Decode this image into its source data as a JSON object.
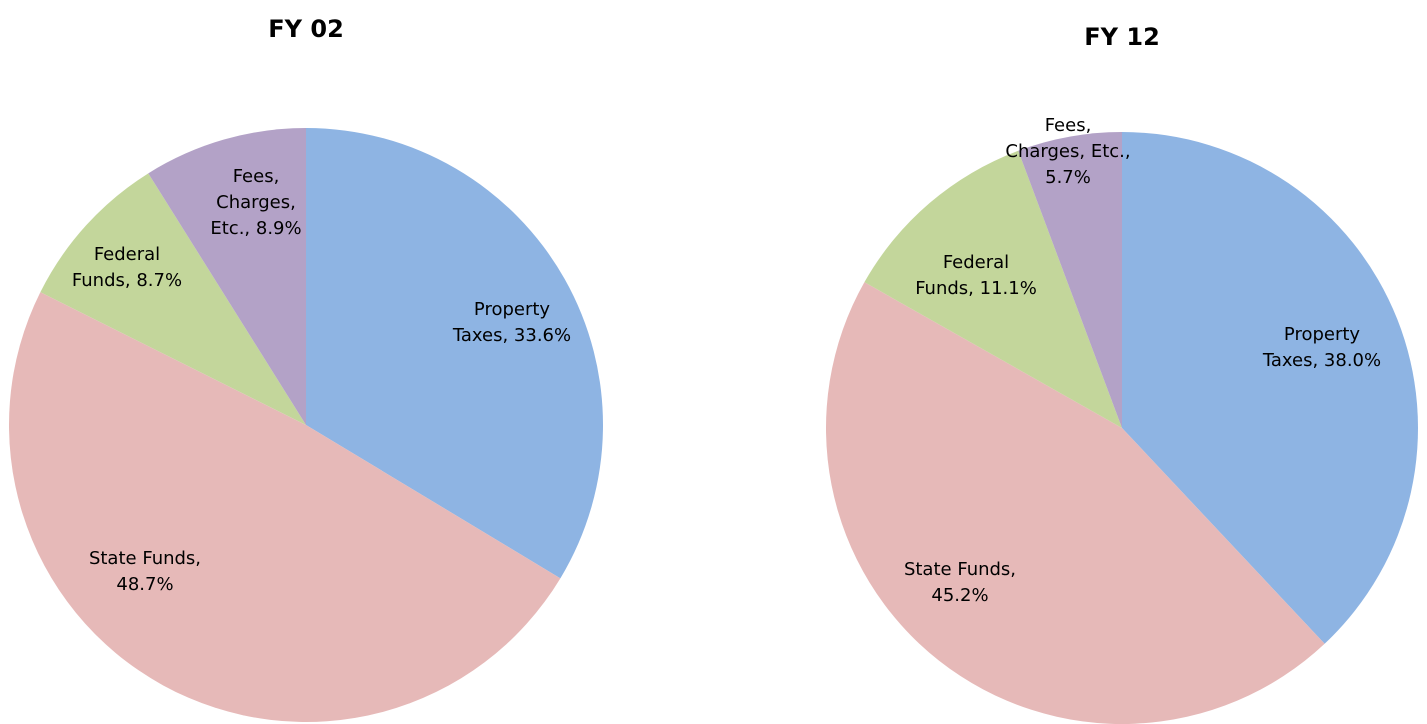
{
  "chart_data": [
    {
      "type": "pie",
      "title": "FY 02",
      "categories": [
        "Property Taxes",
        "State Funds",
        "Federal Funds",
        "Fees, Charges, Etc."
      ],
      "values": [
        33.6,
        48.7,
        8.7,
        8.9
      ],
      "value_labels": [
        "Property Taxes, 33.6%",
        "State Funds, 48.7%",
        "Federal Funds, 8.7%",
        "Fees, Charges, Etc., 8.9%"
      ],
      "colors": [
        "#8EB4E3",
        "#E6B9B8",
        "#C3D69B",
        "#B3A2C7"
      ]
    },
    {
      "type": "pie",
      "title": "FY 12",
      "categories": [
        "Property Taxes",
        "State Funds",
        "Federal Funds",
        "Fees, Charges, Etc."
      ],
      "values": [
        38.0,
        45.2,
        11.1,
        5.7
      ],
      "value_labels": [
        "Property Taxes, 38.0%",
        "State Funds, 45.2%",
        "Federal Funds, 11.1%",
        "Fees, Charges, Etc., 5.7%"
      ],
      "colors": [
        "#8EB4E3",
        "#E6B9B8",
        "#C3D69B",
        "#B3A2C7"
      ]
    }
  ]
}
